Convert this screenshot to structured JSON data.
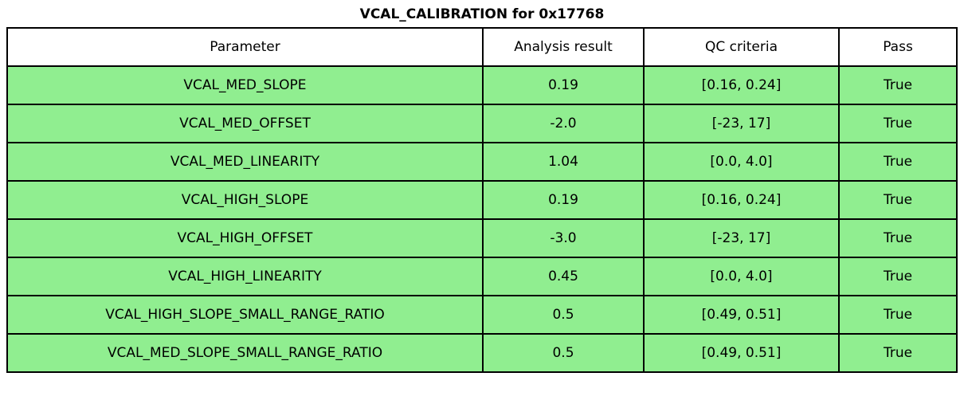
{
  "chart_data": {
    "type": "table",
    "title": "VCAL_CALIBRATION for 0x17768",
    "columns": [
      "Parameter",
      "Analysis result",
      "QC criteria",
      "Pass"
    ],
    "rows": [
      [
        "VCAL_MED_SLOPE",
        "0.19",
        "[0.16, 0.24]",
        "True"
      ],
      [
        "VCAL_MED_OFFSET",
        "-2.0",
        "[-23, 17]",
        "True"
      ],
      [
        "VCAL_MED_LINEARITY",
        "1.04",
        "[0.0, 4.0]",
        "True"
      ],
      [
        "VCAL_HIGH_SLOPE",
        "0.19",
        "[0.16, 0.24]",
        "True"
      ],
      [
        "VCAL_HIGH_OFFSET",
        "-3.0",
        "[-23, 17]",
        "True"
      ],
      [
        "VCAL_HIGH_LINEARITY",
        "0.45",
        "[0.0, 4.0]",
        "True"
      ],
      [
        "VCAL_HIGH_SLOPE_SMALL_RANGE_RATIO",
        "0.5",
        "[0.49, 0.51]",
        "True"
      ],
      [
        "VCAL_MED_SLOPE_SMALL_RANGE_RATIO",
        "0.5",
        "[0.49, 0.51]",
        "True"
      ]
    ],
    "colors": {
      "row_fill": "#90EE90",
      "header_fill": "#FFFFFF",
      "border": "#000000",
      "text": "#000000"
    },
    "layout": {
      "grid": true,
      "all_pass": true,
      "num_data_rows": 8
    }
  }
}
